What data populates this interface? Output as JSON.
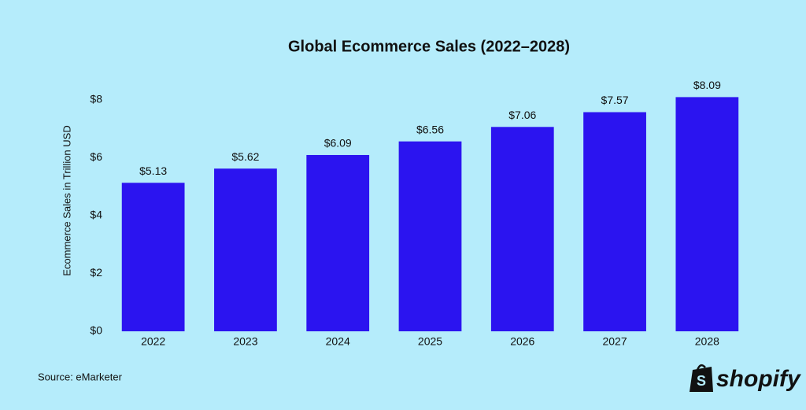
{
  "chart_data": {
    "type": "bar",
    "title": "Global Ecommerce Sales (2022–2028)",
    "y_label": "Ecommerce Sales in Trillion USD",
    "categories": [
      "2022",
      "2023",
      "2024",
      "2025",
      "2026",
      "2027",
      "2028"
    ],
    "values": [
      5.13,
      5.62,
      6.09,
      6.56,
      7.06,
      7.57,
      8.09
    ],
    "value_labels": [
      "$5.13",
      "$5.62",
      "$6.09",
      "$6.56",
      "$7.06",
      "$7.57",
      "$8.09"
    ],
    "color": "#2b14f0",
    "ylim": [
      0,
      8.4
    ],
    "yticks": [
      {
        "value": 0,
        "label": "$0"
      },
      {
        "value": 2,
        "label": "$2"
      },
      {
        "value": 4,
        "label": "$4"
      },
      {
        "value": 6,
        "label": "$6"
      },
      {
        "value": 8,
        "label": "$8"
      }
    ],
    "grid": false,
    "source": "Source: eMarketer",
    "logo": "shopify"
  }
}
